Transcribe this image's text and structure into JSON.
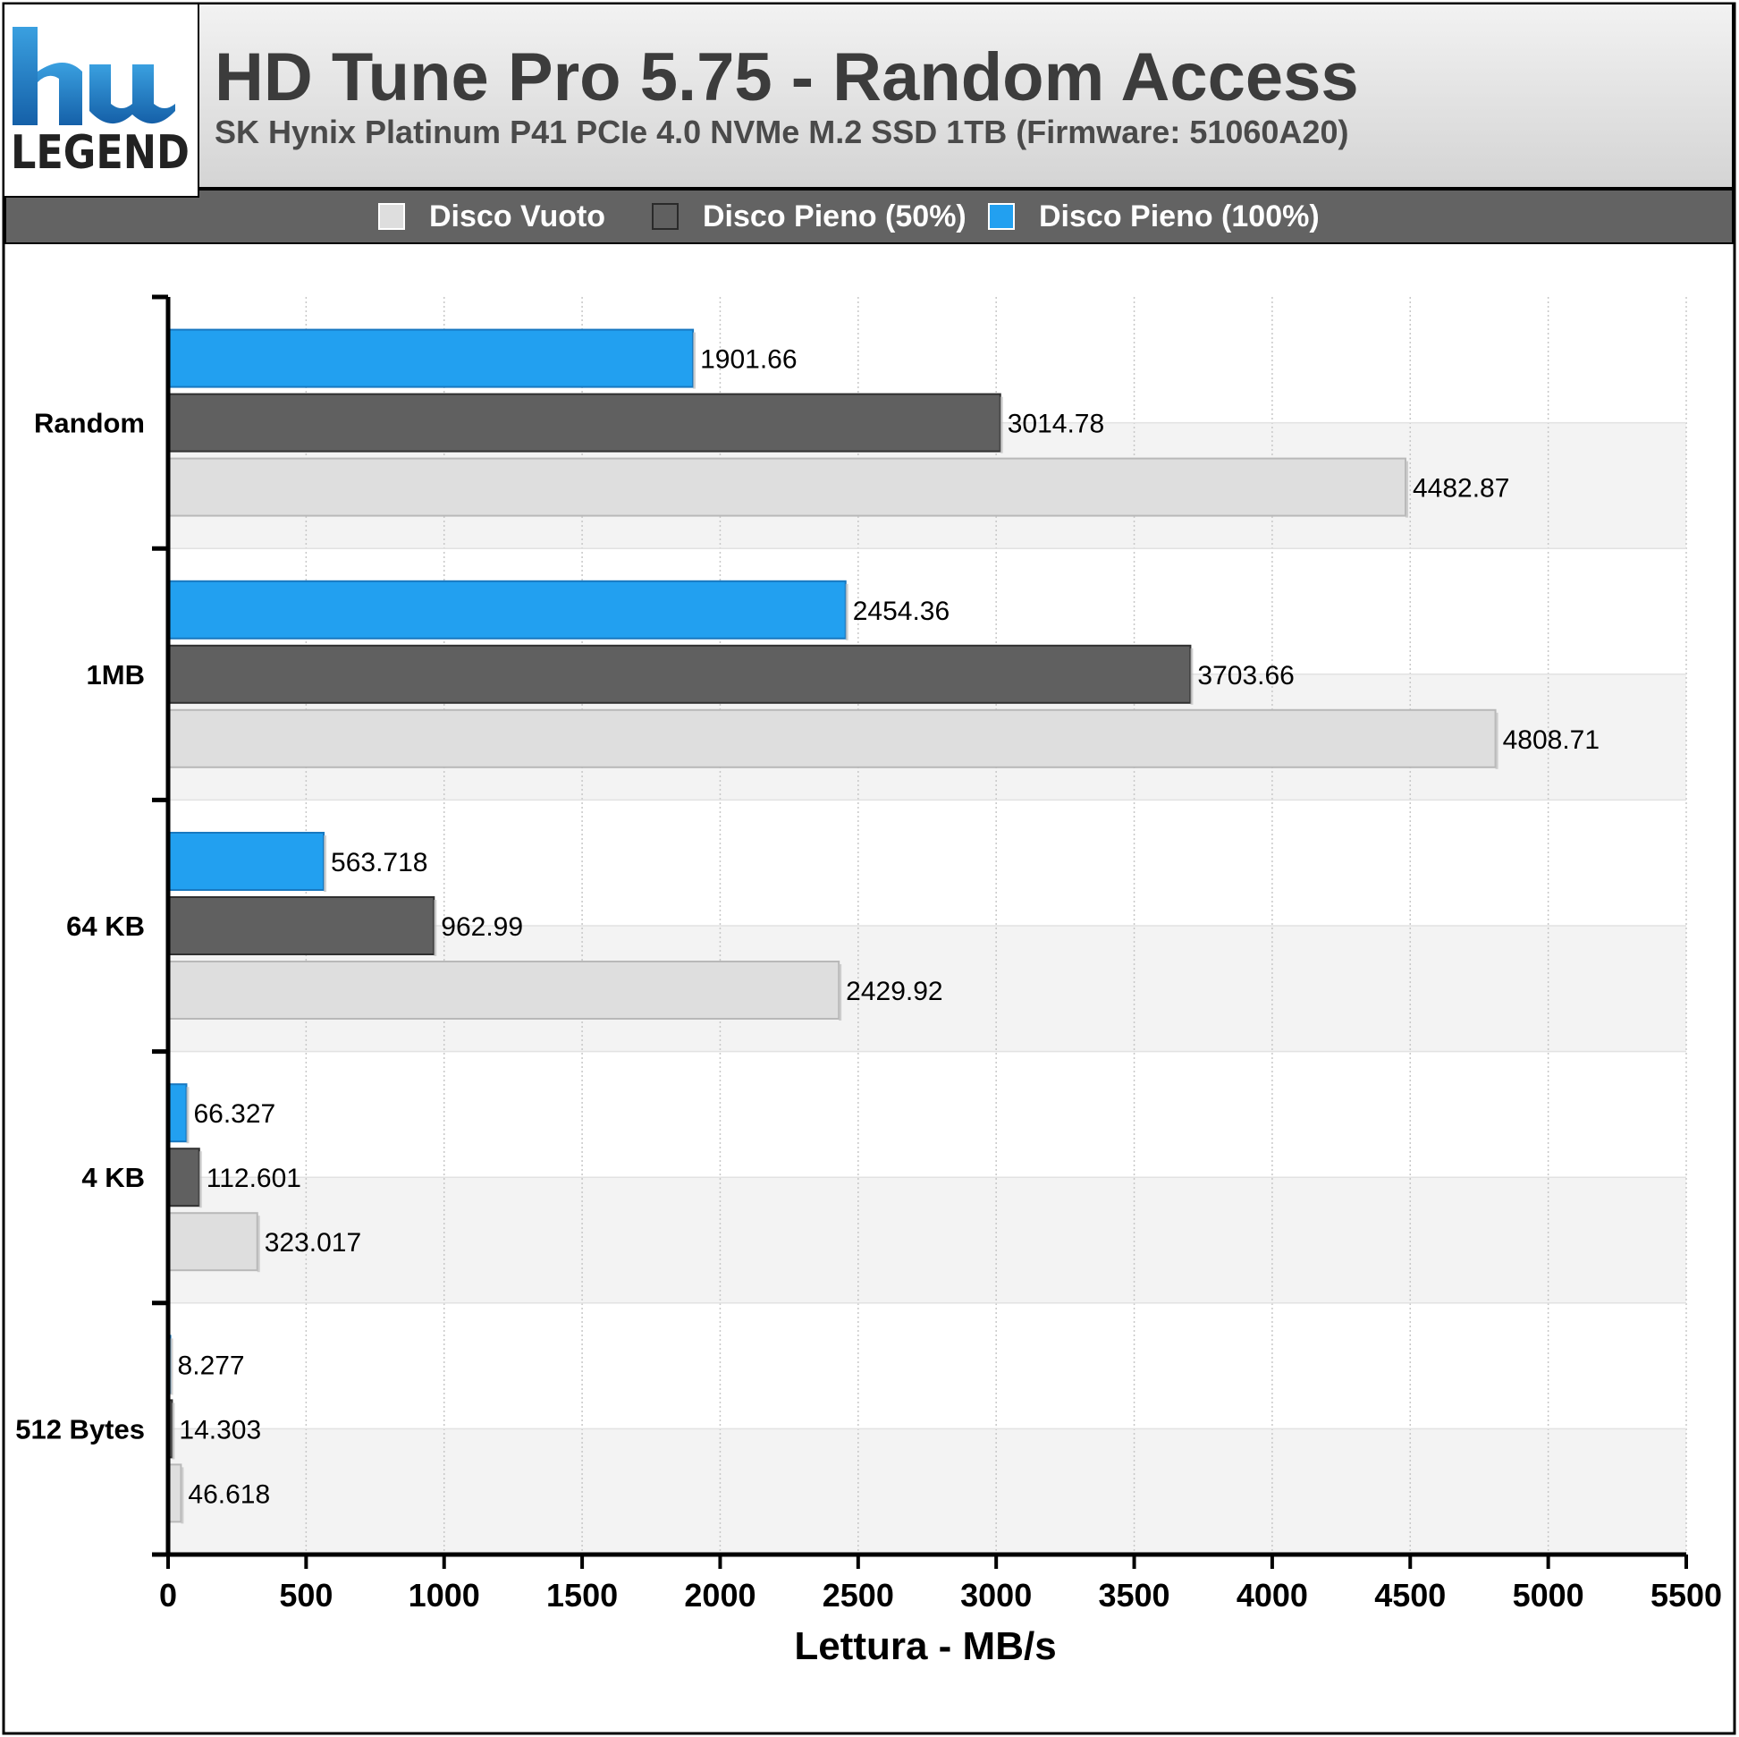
{
  "header": {
    "title": "HD Tune Pro 5.75 - Random Access",
    "subtitle": "SK Hynix Platinum P41 PCIe 4.0 NVMe M.2 SSD 1TB (Firmware: 51060A20)",
    "logo_text": "LEGEND",
    "logo_mark": "hw"
  },
  "colors": {
    "disco_vuoto": "#dedede",
    "disco_pieno_50": "#606060",
    "disco_pieno_100": "#22a0f0",
    "header_band": "#dcdcdc",
    "legend_band": "#636363"
  },
  "chart_data": {
    "type": "bar",
    "orientation": "horizontal",
    "title": "HD Tune Pro 5.75 - Random Access",
    "subtitle": "SK Hynix Platinum P41 PCIe 4.0 NVMe M.2 SSD 1TB (Firmware: 51060A20)",
    "categories": [
      "Random",
      "1MB",
      "64 KB",
      "4 KB",
      "512 Bytes"
    ],
    "series": [
      {
        "name": "Disco Pieno (100%)",
        "color": "#22a0f0",
        "values": [
          1901.66,
          2454.36,
          563.718,
          66.327,
          8.277
        ],
        "labels": [
          "1901.66",
          "2454.36",
          "563.718",
          "66.327",
          "8.277"
        ]
      },
      {
        "name": "Disco Pieno (50%)",
        "color": "#606060",
        "values": [
          3014.78,
          3703.66,
          962.99,
          112.601,
          14.303
        ],
        "labels": [
          "3014.78",
          "3703.66",
          "962.99",
          "112.601",
          "14.303"
        ]
      },
      {
        "name": "Disco Vuoto",
        "color": "#dedede",
        "values": [
          4482.87,
          4808.71,
          2429.92,
          323.017,
          46.618
        ],
        "labels": [
          "4482.87",
          "4808.71",
          "2429.92",
          "323.017",
          "46.618"
        ]
      }
    ],
    "legend": [
      {
        "name": "Disco Vuoto",
        "color": "#dedede"
      },
      {
        "name": "Disco Pieno (50%)",
        "color": "#606060"
      },
      {
        "name": "Disco Pieno (100%)",
        "color": "#22a0f0"
      }
    ],
    "legend_position": "top",
    "xlabel": "Lettura - MB/s",
    "ylabel": "",
    "xlim": [
      0,
      5500
    ],
    "xticks": [
      0,
      500,
      1000,
      1500,
      2000,
      2500,
      3000,
      3500,
      4000,
      4500,
      5000,
      5500
    ],
    "xtick_labels": [
      "0",
      "500",
      "1000",
      "1500",
      "2000",
      "2500",
      "3000",
      "3500",
      "4000",
      "4500",
      "5000",
      "5500"
    ],
    "grid": true
  }
}
